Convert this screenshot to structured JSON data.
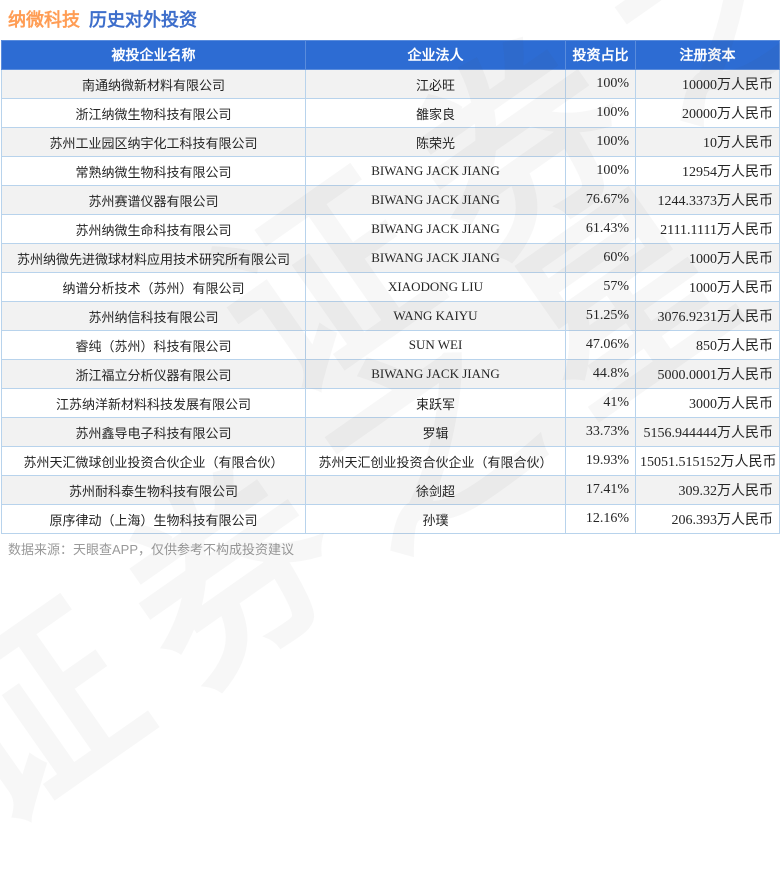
{
  "title": {
    "company": "纳微科技",
    "section": "历史对外投资"
  },
  "colors": {
    "title_company": "#ff9d55",
    "title_section": "#3d6ecb",
    "header_bg": "#2d6cd3",
    "header_text": "#ffffff",
    "row_alt_bg": "#f2f2f2",
    "cell_border": "#b8d3ec",
    "footer_text": "#999999"
  },
  "watermark": {
    "text": "证券之星"
  },
  "chart_data": {
    "type": "table",
    "title": "纳微科技 历史对外投资",
    "columns": [
      "被投企业名称",
      "企业法人",
      "投资占比",
      "注册资本"
    ],
    "rows": [
      [
        "南通纳微新材料有限公司",
        "江必旺",
        "100%",
        "10000万人民币"
      ],
      [
        "浙江纳微生物科技有限公司",
        "雒家良",
        "100%",
        "20000万人民币"
      ],
      [
        "苏州工业园区纳宇化工科技有限公司",
        "陈荣光",
        "100%",
        "10万人民币"
      ],
      [
        "常熟纳微生物科技有限公司",
        "BIWANG JACK JIANG",
        "100%",
        "12954万人民币"
      ],
      [
        "苏州赛谱仪器有限公司",
        "BIWANG JACK JIANG",
        "76.67%",
        "1244.3373万人民币"
      ],
      [
        "苏州纳微生命科技有限公司",
        "BIWANG JACK JIANG",
        "61.43%",
        "2111.1111万人民币"
      ],
      [
        "苏州纳微先进微球材料应用技术研究所有限公司",
        "BIWANG JACK JIANG",
        "60%",
        "1000万人民币"
      ],
      [
        "纳谱分析技术（苏州）有限公司",
        "XIAODONG LIU",
        "57%",
        "1000万人民币"
      ],
      [
        "苏州纳信科技有限公司",
        "WANG KAIYU",
        "51.25%",
        "3076.9231万人民币"
      ],
      [
        "睿纯（苏州）科技有限公司",
        "SUN WEI",
        "47.06%",
        "850万人民币"
      ],
      [
        "浙江福立分析仪器有限公司",
        "BIWANG JACK JIANG",
        "44.8%",
        "5000.0001万人民币"
      ],
      [
        "江苏纳洋新材料科技发展有限公司",
        "束跃军",
        "41%",
        "3000万人民币"
      ],
      [
        "苏州鑫导电子科技有限公司",
        "罗辑",
        "33.73%",
        "5156.944444万人民币"
      ],
      [
        "苏州天汇微球创业投资合伙企业（有限合伙）",
        "苏州天汇创业投资合伙企业（有限合伙）",
        "19.93%",
        "15051.515152万人民币"
      ],
      [
        "苏州耐科泰生物科技有限公司",
        "徐剑超",
        "17.41%",
        "309.32万人民币"
      ],
      [
        "原序律动（上海）生物科技有限公司",
        "孙璞",
        "12.16%",
        "206.393万人民币"
      ]
    ]
  },
  "footer": {
    "source_note": "数据来源：天眼查APP，仅供参考不构成投资建议"
  }
}
